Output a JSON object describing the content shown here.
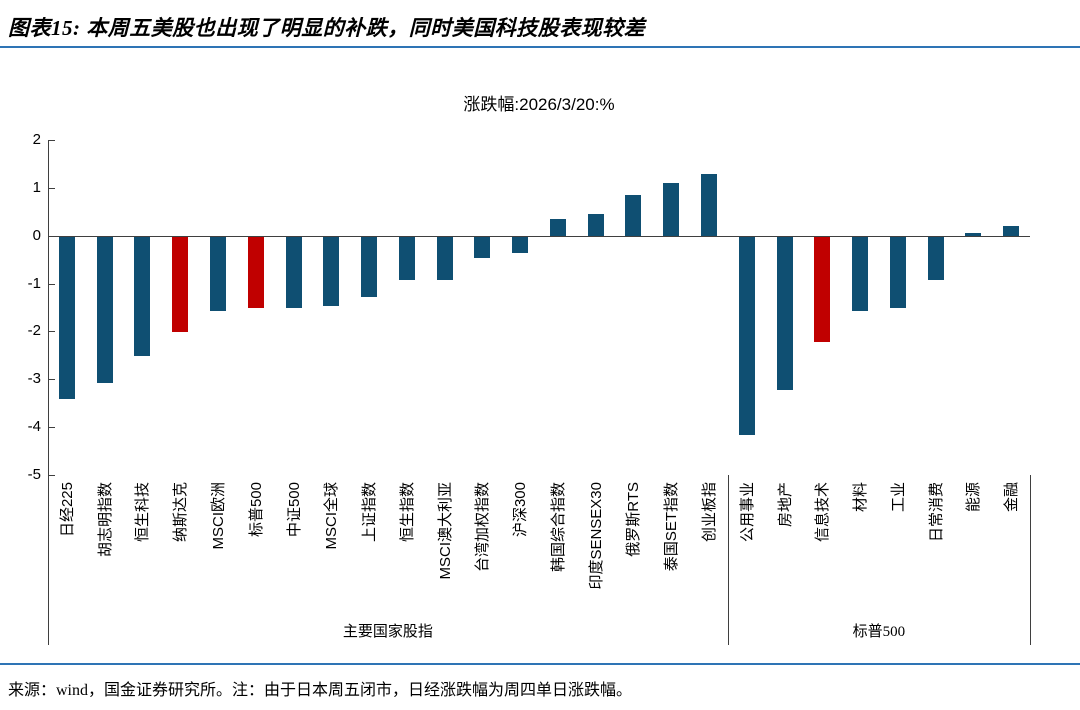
{
  "page": {
    "title": "图表15: 本周五美股也出现了明显的补跌，同时美国科技股表现较差",
    "footer": "来源：wind，国金证券研究所。注：由于日本周五闭市，日经涨跌幅为周四单日涨跌幅。"
  },
  "chart_data": {
    "type": "bar",
    "title": "涨跌幅:2026/3/20:%",
    "xlabel": "",
    "ylabel": "",
    "ylim": [
      -5,
      2
    ],
    "yticks": [
      2,
      1,
      0,
      -1,
      -2,
      -3,
      -4,
      -5
    ],
    "grid": false,
    "legend": "none",
    "colors": {
      "default": "#0F4F72",
      "highlight": "#C00000",
      "axis": "#3f3f3f",
      "rule": "#2E74B5"
    },
    "categories": [
      "日经225",
      "胡志明指数",
      "恒生科技",
      "纳斯达克",
      "MSCI欧洲",
      "标普500",
      "中证500",
      "MSCI全球",
      "上证指数",
      "恒生指数",
      "MSCI澳大利亚",
      "台湾加权指数",
      "沪深300",
      "韩国综合指数",
      "印度SENSEX30",
      "俄罗斯RTS",
      "泰国SET指数",
      "创业板指",
      "公用事业",
      "房地产",
      "信息技术",
      "材料",
      "工业",
      "日常消费",
      "能源",
      "金融"
    ],
    "values": [
      -3.4,
      -3.05,
      -2.5,
      -2.0,
      -1.55,
      -1.5,
      -1.5,
      -1.45,
      -1.25,
      -0.9,
      -0.9,
      -0.45,
      -0.35,
      0.35,
      0.45,
      0.85,
      1.1,
      1.3,
      -4.15,
      -3.2,
      -2.2,
      -1.55,
      -1.5,
      -0.9,
      0.05,
      0.2
    ],
    "highlight_indices": [
      3,
      5,
      20
    ],
    "groups": [
      {
        "label": "主要国家股指",
        "start": 0,
        "end": 17
      },
      {
        "label": "标普500",
        "start": 18,
        "end": 25
      }
    ]
  }
}
